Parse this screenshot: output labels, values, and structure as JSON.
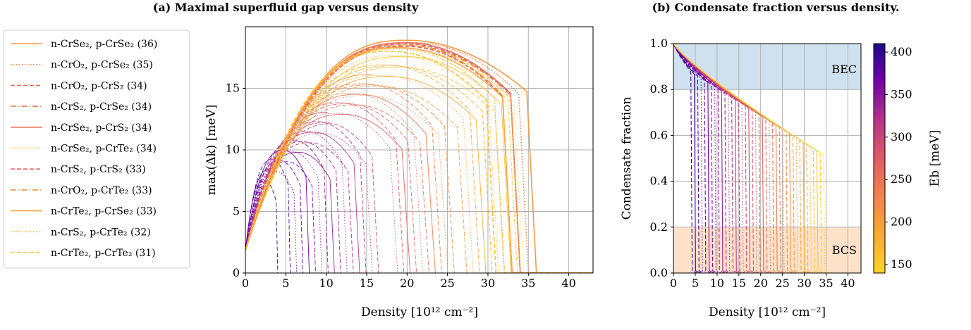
{
  "chart_data": [
    {
      "type": "line",
      "title": "(a) Maximal superfluid gap versus density",
      "xlabel": "Density [10¹² cm⁻²]",
      "ylabel": "max(Δk) [meV]",
      "xlim": [
        0,
        43
      ],
      "ylim": [
        0,
        20
      ],
      "xticks": [
        "0",
        "5",
        "10",
        "15",
        "20",
        "25",
        "30",
        "35",
        "40"
      ],
      "yticks": [
        "0",
        "5",
        "10",
        "15"
      ],
      "grid": true,
      "legend_position": "left, outside axes",
      "series": [
        {
          "name": "n-CrSe₂, p-CrSe₂ (36)",
          "style": "solid",
          "color": "#f89a44",
          "Eb": 165,
          "peak_x": 20,
          "peak_y": 18.9,
          "cutoff_x": 36.0
        },
        {
          "name": "n-CrO₂, p-CrSe₂ (35)",
          "style": "dotted",
          "color": "#f07f4f",
          "Eb": 190,
          "peak_x": 21,
          "peak_y": 18.7,
          "cutoff_x": 35.0
        },
        {
          "name": "n-CrO₂, p-CrS₂ (34)",
          "style": "dashed",
          "color": "#e8685a",
          "Eb": 210,
          "peak_x": 20,
          "peak_y": 18.6,
          "cutoff_x": 34.0
        },
        {
          "name": "n-CrS₂, p-CrSe₂ (34)",
          "style": "dashdot",
          "color": "#ef7e50",
          "Eb": 195,
          "peak_x": 20,
          "peak_y": 18.5,
          "cutoff_x": 34.0
        },
        {
          "name": "n-CrSe₂, p-CrS₂ (34)",
          "style": "solid",
          "color": "#e9705a",
          "Eb": 205,
          "peak_x": 20,
          "peak_y": 18.7,
          "cutoff_x": 34.0
        },
        {
          "name": "n-CrSe₂, p-CrTe₂ (34)",
          "style": "dotted",
          "color": "#fdbb35",
          "Eb": 160,
          "peak_x": 19,
          "peak_y": 18.3,
          "cutoff_x": 34.0
        },
        {
          "name": "n-CrS₂, p-CrS₂ (33)",
          "style": "dashed",
          "color": "#e75e5f",
          "Eb": 220,
          "peak_x": 20,
          "peak_y": 18.4,
          "cutoff_x": 33.0
        },
        {
          "name": "n-CrO₂, p-CrTe₂ (33)",
          "style": "dashdot",
          "color": "#f4904a",
          "Eb": 180,
          "peak_x": 20,
          "peak_y": 18.5,
          "cutoff_x": 33.0
        },
        {
          "name": "n-CrTe₂, p-CrSe₂ (33)",
          "style": "solid",
          "color": "#fca83c",
          "Eb": 170,
          "peak_x": 19,
          "peak_y": 18.3,
          "cutoff_x": 33.0
        },
        {
          "name": "n-CrS₂, p-CrTe₂ (32)",
          "style": "dotted",
          "color": "#fbb13a",
          "Eb": 165,
          "peak_x": 19,
          "peak_y": 18.2,
          "cutoff_x": 32.0
        },
        {
          "name": "n-CrTe₂, p-CrTe₂ (31)",
          "style": "dashed",
          "color": "#fdc52f",
          "Eb": 150,
          "peak_x": 18,
          "peak_y": 18.0,
          "cutoff_x": 31.0
        }
      ]
    },
    {
      "type": "line",
      "title": "(b) Condensate fraction versus density.",
      "xlabel": "Density [10¹² cm⁻²]",
      "ylabel": "Condensate fraction",
      "xlim": [
        0,
        43
      ],
      "ylim": [
        0,
        1.0
      ],
      "xticks": [
        "0",
        "5",
        "10",
        "15",
        "20",
        "25",
        "30",
        "35",
        "40"
      ],
      "yticks": [
        "0.0",
        "0.2",
        "0.4",
        "0.6",
        "0.8",
        "1.0"
      ],
      "grid": true,
      "regions": [
        {
          "label": "BEC",
          "y_range": [
            0.8,
            1.0
          ],
          "color": "#cfe1ee"
        },
        {
          "label": "BCS",
          "y_range": [
            0.0,
            0.2
          ],
          "color": "#fde2c9"
        }
      ],
      "colorbar": {
        "label": "Eb [meV]",
        "range": [
          140,
          410
        ],
        "ticks": [
          "150",
          "200",
          "250",
          "300",
          "350",
          "400"
        ],
        "colormap": "plasma_r"
      }
    }
  ]
}
